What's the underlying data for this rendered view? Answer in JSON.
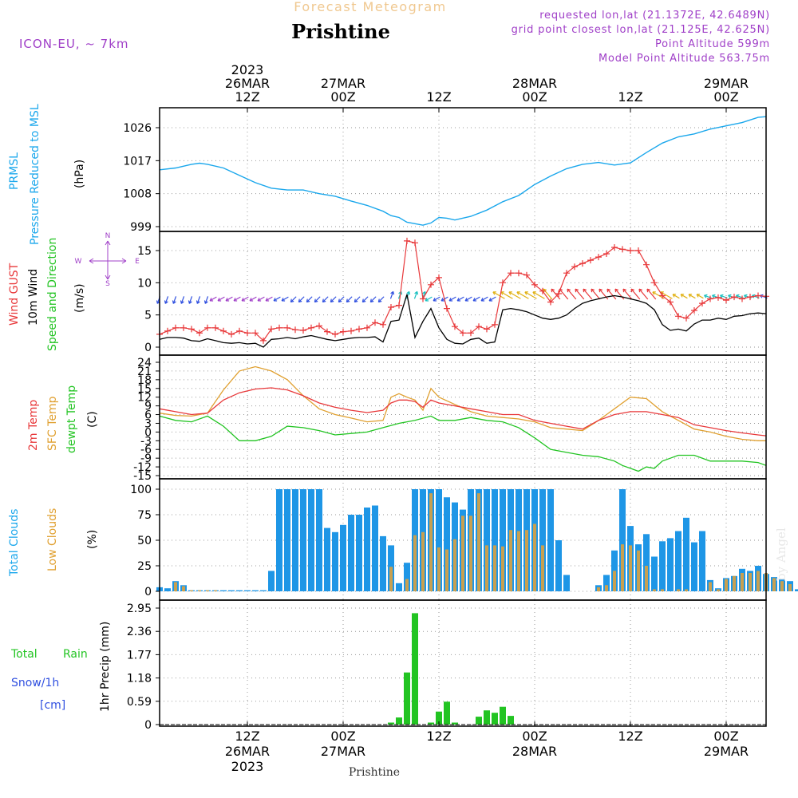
{
  "header": {
    "product": "Forecast Meteogram",
    "location": "Prishtine",
    "model": "ICON-EU, ~ 7km",
    "requested": "requested lon,lat (21.1372E, 42.6489N)",
    "grid_point": "grid point closest lon,lat (21.125E, 42.625N)",
    "point_alt": "Point Altitude 599m",
    "model_alt": "Model Point Altitude 563.75m",
    "footer_location": "Prishtine",
    "credit": "by Angel"
  },
  "time_axis": {
    "top_labels": [
      {
        "line1": "2023",
        "line2": "26MAR",
        "line3": "12Z",
        "hour": 12
      },
      {
        "line1": "",
        "line2": "27MAR",
        "line3": "00Z",
        "hour": 24
      },
      {
        "line1": "",
        "line2": "",
        "line3": "12Z",
        "hour": 36
      },
      {
        "line1": "",
        "line2": "28MAR",
        "line3": "00Z",
        "hour": 48
      },
      {
        "line1": "",
        "line2": "",
        "line3": "12Z",
        "hour": 60
      },
      {
        "line1": "",
        "line2": "29MAR",
        "line3": "00Z",
        "hour": 72
      }
    ],
    "bottom_labels": [
      {
        "line1": "12Z",
        "line2": "26MAR",
        "line3": "2023",
        "hour": 12
      },
      {
        "line1": "00Z",
        "line2": "27MAR",
        "line3": "",
        "hour": 24
      },
      {
        "line1": "12Z",
        "line2": "",
        "line3": "",
        "hour": 36
      },
      {
        "line1": "00Z",
        "line2": "28MAR",
        "line3": "",
        "hour": 48
      },
      {
        "line1": "12Z",
        "line2": "",
        "line3": "",
        "hour": 60
      },
      {
        "line1": "00Z",
        "line2": "29MAR",
        "line3": "",
        "hour": 72
      }
    ],
    "x_range_hours": [
      1,
      77
    ]
  },
  "panels": {
    "pressure": {
      "label1": "PRMSL",
      "label2": "Pressure Reduced to MSL",
      "unit": "(hPa)",
      "ticks": [
        "999",
        "1008",
        "1017",
        "1026"
      ]
    },
    "wind": {
      "label_gust": "Wind GUST",
      "label_wind": "10m Wind",
      "label_dir": "Speed and Direction",
      "unit": "(m/s)",
      "ticks": [
        "0",
        "5",
        "10",
        "15"
      ],
      "compass_n": "N",
      "compass_s": "S",
      "compass_w": "W",
      "compass_e": "E"
    },
    "temp": {
      "label1": "2m Temp",
      "label2": "SFC Temp",
      "label3": "dewpt Temp",
      "unit": "(C)",
      "ticks": [
        "24",
        "21",
        "18",
        "15",
        "12",
        "9",
        "6",
        "3",
        "0",
        "-3",
        "-6",
        "-9",
        "-12",
        "-15"
      ]
    },
    "cloud": {
      "label1": "Total Clouds",
      "label2": "Low Clouds",
      "unit": "(%)",
      "ticks": [
        "0",
        "25",
        "50",
        "75",
        "100"
      ]
    },
    "precip": {
      "label1": "Total",
      "label1b": "Rain",
      "label2": "Snow/1h",
      "label3": "[cm]",
      "unit": "1hr Precip (mm)",
      "ticks": [
        "0",
        "0.59",
        "1.18",
        "1.77",
        "2.36",
        "2.95"
      ]
    }
  },
  "colors": {
    "pressure": "#1aa7ec",
    "gust": "#e8383a",
    "wind": "#000000",
    "t2m": "#e8383a",
    "tsfc": "#e0a030",
    "dewpt": "#22c422",
    "total_cloud": "#1e96e6",
    "low_cloud": "#c8a050",
    "rain": "#22c422",
    "snow": "#3050e0",
    "meta": "#a040c8",
    "title_sub": "#f0c890"
  },
  "chart_data": [
    {
      "type": "line",
      "title": "Pressure Reduced to MSL",
      "ylabel": "(hPa)",
      "ylim": [
        997,
        1030
      ],
      "series": [
        {
          "name": "PRMSL",
          "x": [
            1,
            3,
            5,
            6,
            7,
            9,
            11,
            13,
            15,
            17,
            19,
            21,
            23,
            25,
            27,
            29,
            30,
            31,
            32,
            33,
            34,
            35,
            36,
            37,
            38,
            40,
            42,
            44,
            46,
            48,
            50,
            52,
            54,
            56,
            58,
            60,
            62,
            64,
            66,
            68,
            70,
            72,
            74,
            76,
            77
          ],
          "values": [
            1014.5,
            1015,
            1016,
            1016.3,
            1016,
            1015,
            1013,
            1011,
            1009.5,
            1009,
            1009,
            1008,
            1007.3,
            1006,
            1004.8,
            1003.2,
            1002,
            1001.5,
            1000.2,
            999.8,
            999.4,
            1000,
            1001.5,
            1001.3,
            1000.8,
            1001.8,
            1003.5,
            1005.8,
            1007.5,
            1010.5,
            1012.8,
            1014.8,
            1016,
            1016.5,
            1015.8,
            1016.4,
            1019.2,
            1021.8,
            1023.5,
            1024.3,
            1025.6,
            1026.5,
            1027.4,
            1028.8,
            1029
          ]
        }
      ]
    },
    {
      "type": "line",
      "title": "Wind GUST / 10m Wind Speed and Direction",
      "ylabel": "(m/s)",
      "ylim": [
        -1,
        18.5
      ],
      "series": [
        {
          "name": "Wind GUST",
          "x": [
            1,
            2,
            3,
            4,
            5,
            6,
            7,
            8,
            9,
            10,
            11,
            12,
            13,
            14,
            15,
            16,
            17,
            18,
            19,
            20,
            21,
            22,
            23,
            24,
            25,
            26,
            27,
            28,
            29,
            30,
            31,
            32,
            33,
            34,
            35,
            36,
            37,
            38,
            39,
            40,
            41,
            42,
            43,
            44,
            45,
            46,
            47,
            48,
            49,
            50,
            51,
            52,
            53,
            54,
            55,
            56,
            57,
            58,
            59,
            60,
            61,
            62,
            63,
            64,
            65,
            66,
            67,
            68,
            69,
            70,
            71,
            72,
            73,
            74,
            75,
            76,
            77
          ],
          "values": [
            2,
            2.5,
            3,
            3,
            2.8,
            2.2,
            3,
            3,
            2.5,
            2,
            2.5,
            2.2,
            2.2,
            1,
            2.8,
            3,
            3,
            2.7,
            2.6,
            3,
            3.3,
            2.4,
            2,
            2.4,
            2.5,
            2.8,
            3,
            3.8,
            3.5,
            6.2,
            6.5,
            16.5,
            16.2,
            7.5,
            9.7,
            10.8,
            6,
            3.2,
            2.2,
            2.2,
            3.2,
            2.8,
            3.5,
            10,
            11.5,
            11.5,
            11.2,
            9.7,
            8.7,
            7,
            8.3,
            11.5,
            12.5,
            13,
            13.5,
            14,
            14.5,
            15.5,
            15.2,
            15,
            15,
            12.8,
            10,
            8,
            7,
            4.8,
            4.5,
            5.7,
            6.8,
            7.5,
            7.7,
            7.3,
            7.8,
            7.5,
            7.8,
            8,
            7.9
          ]
        },
        {
          "name": "10m Wind",
          "x": [
            1,
            2,
            3,
            4,
            5,
            6,
            7,
            8,
            9,
            10,
            11,
            12,
            13,
            14,
            15,
            16,
            17,
            18,
            19,
            20,
            21,
            22,
            23,
            24,
            25,
            26,
            27,
            28,
            29,
            30,
            31,
            32,
            33,
            34,
            35,
            36,
            37,
            38,
            39,
            40,
            41,
            42,
            43,
            44,
            45,
            46,
            47,
            48,
            49,
            50,
            51,
            52,
            53,
            54,
            55,
            56,
            57,
            58,
            59,
            60,
            61,
            62,
            63,
            64,
            65,
            66,
            67,
            68,
            69,
            70,
            71,
            72,
            73,
            74,
            75,
            76,
            77
          ],
          "values": [
            1.2,
            1.5,
            1.5,
            1.4,
            1,
            0.9,
            1.3,
            1,
            0.7,
            0.6,
            0.7,
            0.5,
            0.6,
            0,
            1.2,
            1.3,
            1.5,
            1.3,
            1.6,
            1.8,
            1.5,
            1.2,
            1,
            1.2,
            1.4,
            1.5,
            1.5,
            1.6,
            0.8,
            4,
            4.2,
            8.2,
            1.5,
            4,
            6,
            3,
            1.2,
            0.6,
            0.5,
            1.2,
            1.4,
            0.6,
            0.8,
            5.8,
            6,
            5.8,
            5.5,
            5,
            4.5,
            4.3,
            4.5,
            5,
            6,
            6.8,
            7.2,
            7.5,
            7.8,
            8,
            7.8,
            7.5,
            7.2,
            6.8,
            5.8,
            3.5,
            2.6,
            2.8,
            2.5,
            3.6,
            4.2,
            4.2,
            4.5,
            4.3,
            4.8,
            4.9,
            5.2,
            5.3,
            5.2
          ]
        }
      ]
    },
    {
      "type": "line",
      "title": "2m Temp / SFC Temp / dewpt Temp",
      "ylabel": "(C)",
      "ylim": [
        -15,
        24
      ],
      "series": [
        {
          "name": "2m Temp",
          "x": [
            1,
            3,
            5,
            7,
            9,
            11,
            13,
            15,
            17,
            19,
            21,
            23,
            25,
            27,
            29,
            30,
            31,
            32,
            33,
            34,
            35,
            36,
            38,
            40,
            42,
            44,
            46,
            48,
            50,
            52,
            54,
            56,
            58,
            60,
            62,
            64,
            66,
            68,
            70,
            72,
            74,
            76,
            77
          ],
          "values": [
            8,
            7,
            6,
            6.5,
            11,
            13.5,
            14.8,
            15.2,
            14.5,
            12.5,
            10,
            8.5,
            7.5,
            6.7,
            7.5,
            10,
            11,
            11,
            10.5,
            8.5,
            11,
            10,
            9,
            8,
            7,
            6,
            6,
            4,
            3,
            2,
            1,
            4,
            6,
            7,
            7,
            6,
            5,
            2.5,
            1.5,
            0.5,
            -0.3,
            -1,
            -1.3
          ]
        },
        {
          "name": "SFC Temp",
          "x": [
            1,
            3,
            5,
            7,
            9,
            11,
            13,
            15,
            17,
            19,
            21,
            23,
            25,
            27,
            29,
            30,
            31,
            32,
            33,
            34,
            35,
            36,
            38,
            40,
            42,
            44,
            46,
            48,
            50,
            52,
            54,
            56,
            58,
            60,
            62,
            64,
            66,
            68,
            70,
            72,
            74,
            76,
            77
          ],
          "values": [
            6.5,
            5.7,
            5.5,
            6.5,
            14.5,
            21,
            22.5,
            21,
            18,
            12.5,
            8,
            6,
            4.8,
            3.5,
            4,
            12,
            13.2,
            12,
            11,
            7.5,
            15,
            12,
            9.5,
            7,
            5.5,
            5,
            4.5,
            3.5,
            1.5,
            1,
            0.5,
            4,
            8,
            12,
            11.5,
            7,
            4,
            1,
            0,
            -1.5,
            -2.5,
            -3,
            -3
          ]
        },
        {
          "name": "dewpt Temp",
          "x": [
            1,
            3,
            5,
            7,
            9,
            11,
            13,
            15,
            17,
            19,
            21,
            23,
            25,
            27,
            29,
            31,
            33,
            35,
            36,
            38,
            40,
            42,
            44,
            46,
            48,
            50,
            52,
            54,
            56,
            58,
            59,
            60,
            61,
            62,
            63,
            64,
            65,
            66,
            68,
            70,
            72,
            74,
            76,
            77
          ],
          "values": [
            5.5,
            4,
            3.5,
            5.5,
            2,
            -3,
            -3,
            -1.5,
            2,
            1.5,
            0.5,
            -1,
            -0.5,
            0,
            1.5,
            3,
            4,
            5.5,
            4,
            4,
            5,
            4,
            3.5,
            1.5,
            -2,
            -6,
            -7,
            -8,
            -8.5,
            -10,
            -11.5,
            -12.5,
            -13.5,
            -12,
            -12.5,
            -10,
            -9,
            -8,
            -8,
            -10,
            -10,
            -10,
            -10.5,
            -11.5
          ]
        }
      ]
    },
    {
      "type": "bar",
      "title": "Total Clouds / Low Clouds",
      "ylabel": "(%)",
      "ylim": [
        0,
        100
      ],
      "x_start": 1,
      "x_step": 1,
      "series": [
        {
          "name": "Total Clouds",
          "values": [
            4,
            3,
            10,
            6,
            1,
            1,
            1,
            1,
            1,
            1,
            1,
            1,
            1,
            1,
            20,
            100,
            100,
            100,
            100,
            100,
            100,
            62,
            58,
            65,
            75,
            75,
            82,
            84,
            54,
            45,
            8,
            28,
            100,
            100,
            100,
            100,
            92,
            87,
            80,
            100,
            100,
            100,
            100,
            100,
            100,
            100,
            100,
            100,
            100,
            100,
            50,
            16,
            0,
            0,
            0,
            6,
            16,
            40,
            100,
            64,
            46,
            56,
            34,
            49,
            52,
            59,
            72,
            48,
            59,
            11,
            3,
            13,
            15,
            22,
            20,
            25,
            17,
            14,
            12,
            10,
            2
          ]
        },
        {
          "name": "Low Clouds",
          "values": [
            0,
            0,
            9,
            5,
            1,
            1,
            1,
            1,
            0,
            0,
            0,
            0,
            0,
            0,
            0,
            0,
            0,
            0,
            0,
            0,
            0,
            0,
            0,
            0,
            0,
            0,
            0,
            0,
            0,
            24,
            0,
            12,
            55,
            58,
            96,
            43,
            41,
            51,
            74,
            74,
            96,
            45,
            45,
            44,
            60,
            59,
            60,
            66,
            45,
            0,
            0,
            0,
            0,
            0,
            0,
            4,
            6,
            20,
            46,
            45,
            40,
            25,
            2,
            2,
            0,
            2,
            2,
            0,
            0,
            9,
            2,
            12,
            15,
            18,
            18,
            20,
            18,
            13,
            10,
            7,
            0
          ]
        }
      ]
    },
    {
      "type": "bar",
      "title": "1hr Precip",
      "ylabel": "1hr Precip (mm)",
      "ylim": [
        0,
        2.95
      ],
      "series": [
        {
          "name": "Total Rain",
          "x": [
            27,
            28,
            29,
            30,
            31,
            32,
            33,
            34,
            35,
            36,
            37,
            38,
            39,
            40,
            41,
            42,
            43,
            44,
            45,
            46,
            47,
            48
          ],
          "values": [
            0,
            0,
            0,
            0.05,
            0.18,
            1.32,
            2.82,
            0,
            0.05,
            0.33,
            0.58,
            0.05,
            0,
            0,
            0.2,
            0.36,
            0.3,
            0.45,
            0.22,
            0,
            0,
            0
          ]
        }
      ]
    }
  ]
}
